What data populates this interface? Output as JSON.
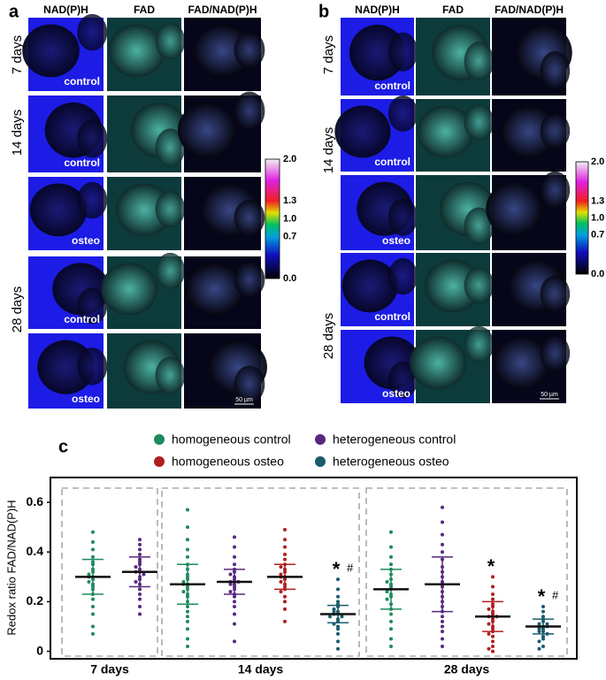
{
  "panels": [
    {
      "label": "a",
      "columns": [
        "NAD(P)H",
        "FAD",
        "FAD/NAD(P)H"
      ],
      "day_groups": [
        {
          "label": "7 days",
          "rows": [
            "control"
          ]
        },
        {
          "label": "14 days",
          "rows": [
            "control",
            "osteo"
          ]
        },
        {
          "label": "28 days",
          "rows": [
            "control",
            "osteo"
          ]
        }
      ],
      "scale_bar": "50  µm",
      "colorbar_ticks": [
        "2.0",
        "1.3",
        "1.0",
        "0.7",
        "0.0"
      ]
    },
    {
      "label": "b",
      "columns": [
        "NAD(P)H",
        "FAD",
        "FAD/NAD(P)H"
      ],
      "day_groups": [
        {
          "label": "7 days",
          "rows": [
            "control"
          ]
        },
        {
          "label": "14 days",
          "rows": [
            "control",
            "osteo"
          ]
        },
        {
          "label": "28 days",
          "rows": [
            "control",
            "osteo"
          ]
        }
      ],
      "scale_bar": "50  µm",
      "colorbar_ticks": [
        "2.0",
        "1.3",
        "1.0",
        "0.7",
        "0.0"
      ]
    }
  ],
  "chart_data": {
    "type": "beeswarm",
    "panel_label": "c",
    "ylabel": "Redox ratio FAD/NAD(P)H",
    "categories": [
      "7 days",
      "14 days",
      "28 days"
    ],
    "ylim": [
      -0.03,
      0.7
    ],
    "yticks": [
      0,
      0.2,
      0.4,
      0.6
    ],
    "series": [
      {
        "name": "homogeneous control",
        "color": "#1e8a5c",
        "values": [
          [
            0.48,
            0.44,
            0.41,
            0.38,
            0.36,
            0.35,
            0.33,
            0.32,
            0.31,
            0.3,
            0.3,
            0.29,
            0.28,
            0.27,
            0.26,
            0.25,
            0.23,
            0.21,
            0.18,
            0.15,
            0.1,
            0.07
          ],
          [
            0.57,
            0.5,
            0.45,
            0.41,
            0.38,
            0.35,
            0.33,
            0.31,
            0.3,
            0.29,
            0.28,
            0.27,
            0.27,
            0.26,
            0.25,
            0.24,
            0.23,
            0.22,
            0.2,
            0.18,
            0.16,
            0.14,
            0.12,
            0.09,
            0.05,
            0.02
          ],
          [
            0.48,
            0.42,
            0.38,
            0.35,
            0.33,
            0.31,
            0.29,
            0.28,
            0.27,
            0.26,
            0.25,
            0.24,
            0.23,
            0.22,
            0.21,
            0.19,
            0.17,
            0.15,
            0.12,
            0.09,
            0.05,
            0.02
          ]
        ],
        "mean": [
          0.3,
          0.27,
          0.25
        ],
        "sd": [
          0.07,
          0.08,
          0.08
        ],
        "significance": [
          null,
          null,
          null
        ]
      },
      {
        "name": "heterogeneous control",
        "color": "#58287f",
        "values": [
          [
            0.45,
            0.43,
            0.41,
            0.39,
            0.37,
            0.36,
            0.35,
            0.34,
            0.33,
            0.32,
            0.32,
            0.31,
            0.3,
            0.29,
            0.28,
            0.27,
            0.25,
            0.23,
            0.21,
            0.18,
            0.15
          ],
          [
            0.46,
            0.42,
            0.38,
            0.35,
            0.33,
            0.32,
            0.31,
            0.3,
            0.29,
            0.28,
            0.28,
            0.27,
            0.27,
            0.26,
            0.25,
            0.24,
            0.23,
            0.22,
            0.2,
            0.18,
            0.15,
            0.11,
            0.04
          ],
          [
            0.58,
            0.52,
            0.47,
            0.43,
            0.4,
            0.37,
            0.34,
            0.32,
            0.3,
            0.28,
            0.27,
            0.26,
            0.24,
            0.22,
            0.2,
            0.18,
            0.16,
            0.14,
            0.12,
            0.1,
            0.08,
            0.05,
            0.02
          ]
        ],
        "mean": [
          0.32,
          0.28,
          0.27
        ],
        "sd": [
          0.06,
          0.05,
          0.11
        ],
        "significance": [
          null,
          null,
          null
        ]
      },
      {
        "name": "homogeneous osteo",
        "color": "#b01f1f",
        "values": [
          null,
          [
            0.49,
            0.45,
            0.42,
            0.39,
            0.37,
            0.35,
            0.34,
            0.33,
            0.32,
            0.31,
            0.3,
            0.3,
            0.29,
            0.28,
            0.27,
            0.26,
            0.25,
            0.24,
            0.22,
            0.2,
            0.17,
            0.12
          ],
          [
            0.3,
            0.26,
            0.23,
            0.21,
            0.19,
            0.18,
            0.17,
            0.16,
            0.15,
            0.14,
            0.14,
            0.13,
            0.12,
            0.11,
            0.1,
            0.09,
            0.08,
            0.07,
            0.06,
            0.04,
            0.02,
            0.01,
            0.0
          ]
        ],
        "mean": [
          null,
          0.3,
          0.14
        ],
        "sd": [
          null,
          0.05,
          0.06
        ],
        "significance": [
          null,
          null,
          {
            "star": "*"
          }
        ]
      },
      {
        "name": "heterogeneous osteo",
        "color": "#1a5c6c",
        "values": [
          null,
          [
            0.29,
            0.25,
            0.22,
            0.2,
            0.19,
            0.18,
            0.17,
            0.16,
            0.16,
            0.15,
            0.15,
            0.14,
            0.14,
            0.13,
            0.12,
            0.11,
            0.1,
            0.09,
            0.07,
            0.04,
            0.01
          ],
          [
            0.18,
            0.16,
            0.14,
            0.13,
            0.12,
            0.11,
            0.11,
            0.1,
            0.1,
            0.1,
            0.09,
            0.09,
            0.08,
            0.08,
            0.07,
            0.06,
            0.05,
            0.04,
            0.02,
            0.01
          ]
        ],
        "mean": [
          null,
          0.15,
          0.1
        ],
        "sd": [
          null,
          0.035,
          0.03
        ],
        "significance": [
          null,
          {
            "star": "*",
            "hash": "#"
          },
          {
            "star": "*",
            "hash": "#"
          }
        ]
      }
    ]
  }
}
